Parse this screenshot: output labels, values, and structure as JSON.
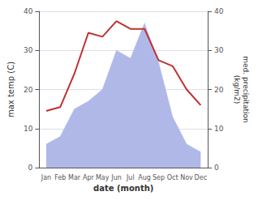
{
  "chart_data": {
    "type": "line",
    "xlabel": "date (month)",
    "ylabel": "max temp (C)",
    "y2label": "med. precipitation\n(kg/m2)",
    "categories": [
      "Jan",
      "Feb",
      "Mar",
      "Apr",
      "May",
      "Jun",
      "Jul",
      "Aug",
      "Sep",
      "Oct",
      "Nov",
      "Dec"
    ],
    "series": [
      {
        "type": "area",
        "color": "#b0b8e8",
        "axis": "y2",
        "values": [
          6,
          8,
          15,
          17,
          20,
          30,
          28,
          37,
          27,
          13,
          6,
          4
        ]
      },
      {
        "type": "line",
        "color": "#c03030",
        "values": [
          14.5,
          15.5,
          24.0,
          34.5,
          33.5,
          37.5,
          35.5,
          35.5,
          27.5,
          26.0,
          20.0,
          16.0
        ]
      }
    ],
    "ylim": [
      0,
      40
    ],
    "yticks": [
      0,
      10,
      20,
      30,
      40
    ],
    "y2lim": [
      0,
      40
    ],
    "y2ticks": [
      0,
      10,
      20,
      30,
      40
    ],
    "grid": true
  }
}
